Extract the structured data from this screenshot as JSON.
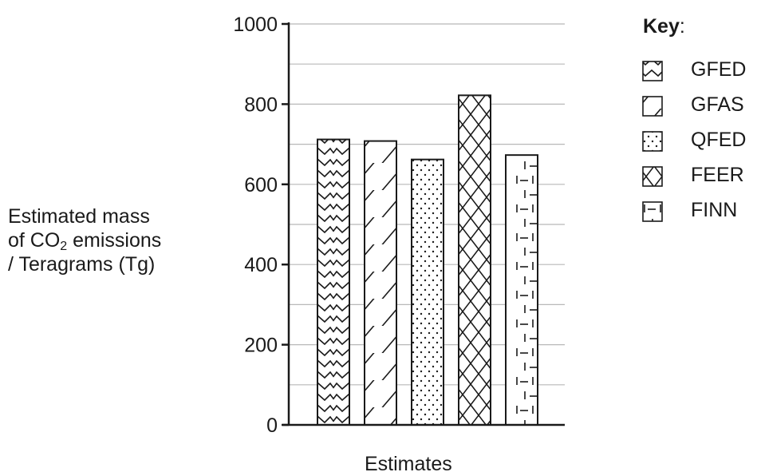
{
  "chart_data": {
    "type": "bar",
    "categories": [
      "GFED",
      "GFAS",
      "QFED",
      "FEER",
      "FINN"
    ],
    "values": [
      712,
      708,
      662,
      822,
      673
    ],
    "patterns": [
      "zigzag",
      "diagonal",
      "dots",
      "crosshatch",
      "dash-grid"
    ],
    "ylabel": {
      "line1": "Estimated mass",
      "line2_prefix": "of CO",
      "line2_sub": "2",
      "line2_suffix": " emissions",
      "line3": "/ Teragrams (Tg)"
    },
    "xlabel": "Estimates",
    "ylim": [
      0,
      1000
    ],
    "y_ticks": [
      0,
      200,
      400,
      600,
      800,
      1000
    ],
    "y_tick_labels": [
      "0",
      "200",
      "400",
      "600",
      "800",
      "1000"
    ],
    "grid": true,
    "legend": {
      "title": "Key",
      "title_suffix": ":",
      "placement": "right",
      "entries": [
        "GFED",
        "GFAS",
        "QFED",
        "FEER",
        "FINN"
      ]
    }
  }
}
